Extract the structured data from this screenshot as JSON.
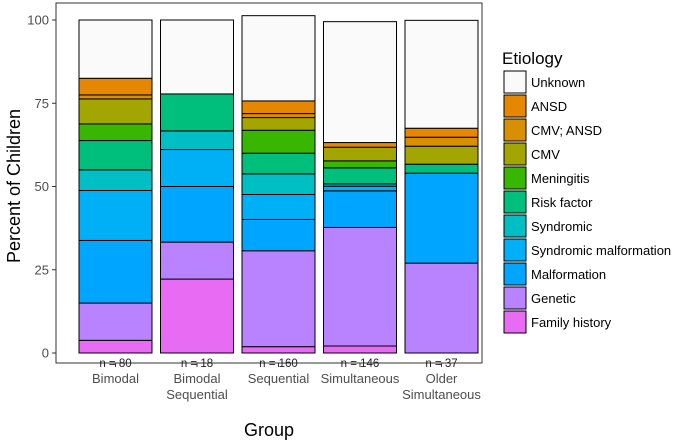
{
  "chart_data": {
    "type": "bar",
    "stacked": true,
    "ylabel": "Percent of Children",
    "xlabel": "Group",
    "ylim": [
      0,
      100
    ],
    "yticks": [
      "0",
      "25",
      "50",
      "75",
      "100"
    ],
    "legend_title": "Etiology",
    "legend_position": "right",
    "categories": [
      {
        "name": "Bimodal",
        "lines": [
          "Bimodal"
        ],
        "n_label": "n = 80"
      },
      {
        "name": "Bimodal Sequential",
        "lines": [
          "Bimodal",
          "Sequential"
        ],
        "n_label": "n = 18"
      },
      {
        "name": "Sequential",
        "lines": [
          "Sequential"
        ],
        "n_label": "n = 160"
      },
      {
        "name": "Simultaneous",
        "lines": [
          "Simultaneous"
        ],
        "n_label": "n = 146"
      },
      {
        "name": "Older Simultaneous",
        "lines": [
          "Older",
          "Simultaneous"
        ],
        "n_label": "n = 37"
      }
    ],
    "series": [
      {
        "name": "Family history",
        "color": "#E76BF3",
        "values": [
          3.8,
          22.2,
          1.9,
          2.1,
          0
        ]
      },
      {
        "name": "Genetic",
        "color": "#B983FF",
        "values": [
          11.2,
          11.1,
          28.8,
          35.6,
          27.0
        ]
      },
      {
        "name": "Malformation",
        "color": "#00A5FF",
        "values": [
          18.8,
          16.7,
          9.4,
          11.0,
          27.0
        ]
      },
      {
        "name": "Syndromic malformation",
        "color": "#00B0F6",
        "values": [
          15.0,
          11.1,
          7.5,
          1.4,
          0
        ]
      },
      {
        "name": "Syndromic",
        "color": "#00BFC4",
        "values": [
          6.2,
          5.6,
          6.2,
          0.7,
          0
        ]
      },
      {
        "name": "Risk factor",
        "color": "#00BF7D",
        "values": [
          8.8,
          11.1,
          6.2,
          4.8,
          2.7
        ]
      },
      {
        "name": "Meningitis",
        "color": "#39B600",
        "values": [
          5.0,
          0,
          6.9,
          2.1,
          0
        ]
      },
      {
        "name": "CMV",
        "color": "#A3A500",
        "values": [
          7.5,
          0,
          3.8,
          4.1,
          5.4
        ]
      },
      {
        "name": "CMV; ANSD",
        "color": "#D89000",
        "values": [
          1.2,
          0,
          1.2,
          0,
          2.7
        ]
      },
      {
        "name": "ANSD",
        "color": "#E58700",
        "values": [
          5.0,
          0,
          3.8,
          1.4,
          2.7
        ]
      },
      {
        "name": "Unknown",
        "color": "#FAFAFA",
        "values": [
          17.5,
          22.2,
          25.6,
          36.3,
          32.4
        ]
      }
    ],
    "legend_order": [
      "Unknown",
      "ANSD",
      "CMV; ANSD",
      "CMV",
      "Meningitis",
      "Risk factor",
      "Syndromic",
      "Syndromic malformation",
      "Malformation",
      "Genetic",
      "Family history"
    ]
  }
}
